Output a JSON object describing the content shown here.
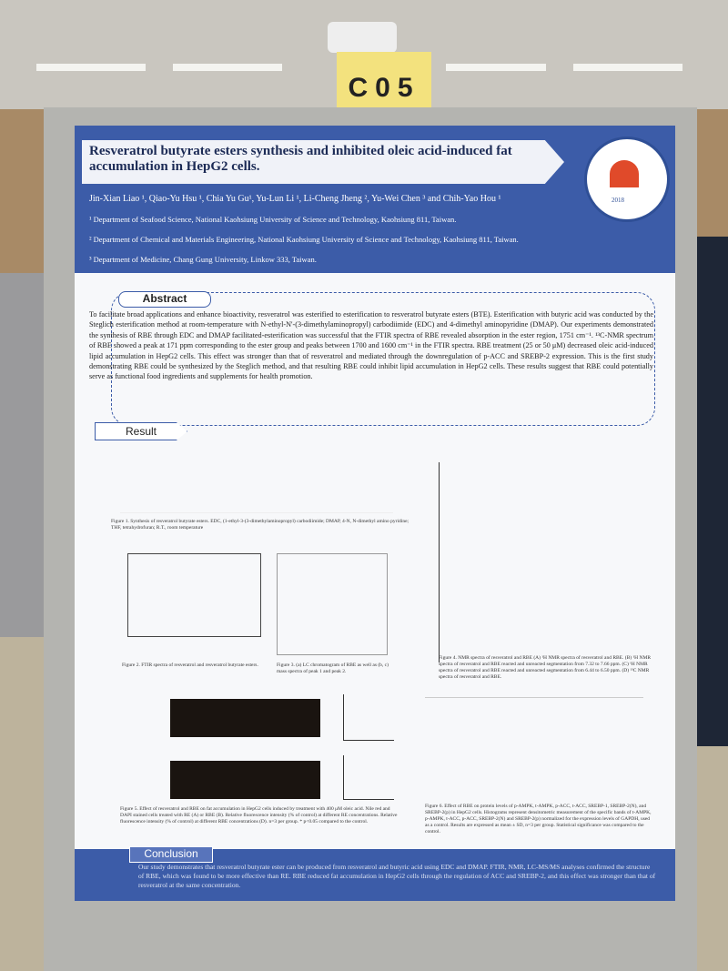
{
  "sign": "C05",
  "header": {
    "title": "Resveratrol butyrate esters synthesis and inhibited oleic acid-induced fat accumulation in HepG2 cells.",
    "authors": "Jin-Xian Liao ¹, Qiao-Yu Hsu ¹, Chia Yu Gu¹, Yu-Lun Li ¹, Li-Cheng Jheng ², Yu-Wei Chen ³ and Chih-Yao Hou ¹",
    "affiliations": [
      "¹ Department of Seafood Science, National Kaohsiung University of Science and Technology, Kaohsiung 811, Taiwan.",
      "² Department of Chemical and Materials Engineering, National Kaohsiung University of Science and Technology, Kaohsiung 811, Taiwan.",
      "³ Department of Medicine, Chang Gung University, Linkow 333, Taiwan."
    ],
    "logo_year": "2018"
  },
  "abstract": {
    "heading": "Abstract",
    "text": "To facilitate broad applications and enhance bioactivity, resveratrol was esterified to esterification to resveratrol butyrate esters (BTE). Esterification with butyric acid was conducted by the Steglich esterification method at room-temperature with N-ethyl-N'-(3-dimethylaminopropyl) carbodiimide (EDC) and 4-dimethyl aminopyridine (DMAP). Our experiments demonstrated the synthesis of RBE through EDC and DMAP facilitated-esterification was successful that the FTIR spectra of RBE revealed absorption in the ester region, 1751 cm⁻¹. ¹³C-NMR spectrum of RBE showed a peak at 171 ppm corresponding to the ester group and peaks between 1700 and 1600 cm⁻¹ in the FTIR spectra. RBE treatment (25 or 50 μM) decreased oleic acid-induced lipid accumulation in HepG2 cells. This effect was stronger than that of resveratrol and mediated through the downregulation of p-ACC and SREBP-2 expression. This is the first study demonstrating RBE could be synthesized by the Steglich method, and that resulting RBE could inhibit lipid accumulation in HepG2 cells. These results suggest that RBE could potentially serve as functional food ingredients and supplements for health promotion."
  },
  "result": {
    "heading": "Result",
    "captions": [
      "Figure 1. Synthesis of resveratrol butyrate esters. EDC, (1-ethyl-3-(3-dimethylaminopropyl) carbodiimide; DMAP, 4-N, N-dimethyl amino pyridine; THF, tetrahydrofuran; R.T., room temperature",
      "Figure 2. FTIR spectra of resveratrol and resveratrol butyrate esters.",
      "Figure 3. (a) LC chromatogram of RBE as well as (b, c) mass spectra of peak 1 and peak 2.",
      "Figure 4. NMR spectra of resveratrol and RBE (A) ¹H NMR spectra of resveratrol and RBE. (B) ¹H NMR spectra of resveratrol and RBE reacted and unreacted segmentation from 7.32 to 7.66 ppm. (C) ¹H NMR spectra of resveratrol and RBE reacted and unreacted segmentation from 6.44 to 6.50 ppm. (D) ¹³C NMR spectra of resveratrol and RBE.",
      "Figure 5. Effect of resveratrol and RBE on fat accumulation in HepG2 cells induced by treatment with 400 μM oleic acid. Nile red and DAPI stained cells treated with RE (A) or RBE (B). Relative fluorescence intensity (% of control) at different RE concentrations. Relative fluorescence intensity (% of control) at different RBE concentrations (D). n=3 per group. * p<0.05 compared to the control.",
      "Figure 6. Effect of RBE on protein levels of p-AMPK, t-AMPK, p-ACC, t-ACC, SREBP-1, SREBP-2(N), and SREBP-2(p) in HepG2 cells. Histograms represent densitometric measurement of the specific bands of t-AMPK, p-AMPK, t-ACC, p-ACC, SREBP-2(N) and SREBP-2(p) normalized for the expression levels of GAPDH, used as a control. Results are expressed as mean ± SD, n=3 per group. Statistical significance was compared to the control."
    ]
  },
  "conclusion": {
    "heading": "Conclusion",
    "text": "Our study demonstrates that resveratrol butyrate ester can be produced from resveratrol and butyric acid using EDC and DMAP. FTIR, NMR, LC-MS/MS analyses confirmed the structure of RBE, which was found to be more effective than RE. RBE reduced fat accumulation in HepG2 cells through the regulation of ACC and SREBP-2, and this effect was stronger than that of resveratrol at the same concentration."
  }
}
